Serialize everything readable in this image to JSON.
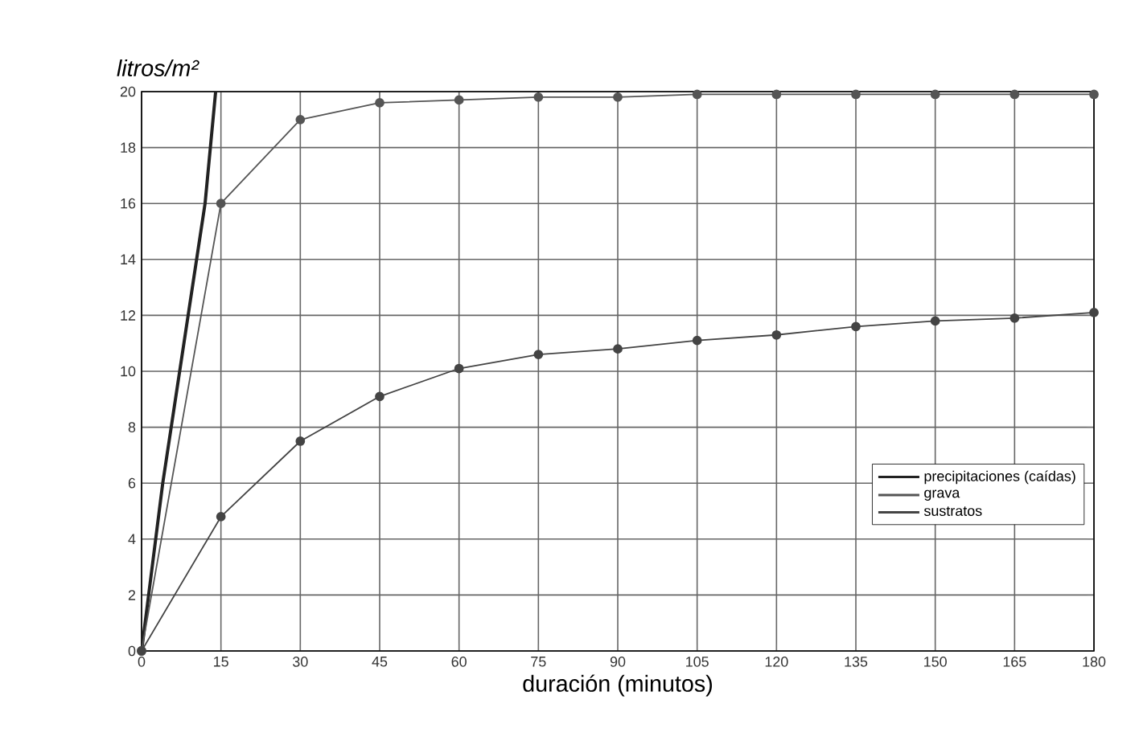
{
  "chart_data": {
    "type": "line",
    "xlabel": "duración (minutos)",
    "ylabel": "litros/m²",
    "xlim": [
      0,
      180
    ],
    "xticks": [
      0,
      15,
      30,
      45,
      60,
      75,
      90,
      105,
      120,
      135,
      150,
      165,
      180
    ],
    "ylim": [
      0,
      20
    ],
    "yticks": [
      0,
      2,
      4,
      6,
      8,
      10,
      12,
      14,
      16,
      18,
      20
    ],
    "grid": true,
    "legend": "right",
    "series": [
      {
        "name": "precipitaciones (caídas)",
        "color": "#222222",
        "marker": "none",
        "x": [
          0,
          4,
          8,
          12,
          14
        ],
        "values": [
          0,
          6,
          11,
          16,
          20
        ]
      },
      {
        "name": "grava",
        "color": "#555555",
        "marker": "circle",
        "x": [
          0,
          15,
          30,
          45,
          60,
          75,
          90,
          105,
          120,
          135,
          150,
          165,
          180
        ],
        "values": [
          0,
          16,
          19,
          19.6,
          19.7,
          19.8,
          19.8,
          19.9,
          19.9,
          19.9,
          19.9,
          19.9,
          19.9
        ]
      },
      {
        "name": "sustratos",
        "color": "#444444",
        "marker": "circle",
        "x": [
          0,
          15,
          30,
          45,
          60,
          75,
          90,
          105,
          120,
          135,
          150,
          165,
          180
        ],
        "values": [
          0,
          4.8,
          7.5,
          9.1,
          10.1,
          10.6,
          10.8,
          11.1,
          11.3,
          11.6,
          11.8,
          11.9,
          12.1
        ]
      }
    ]
  }
}
